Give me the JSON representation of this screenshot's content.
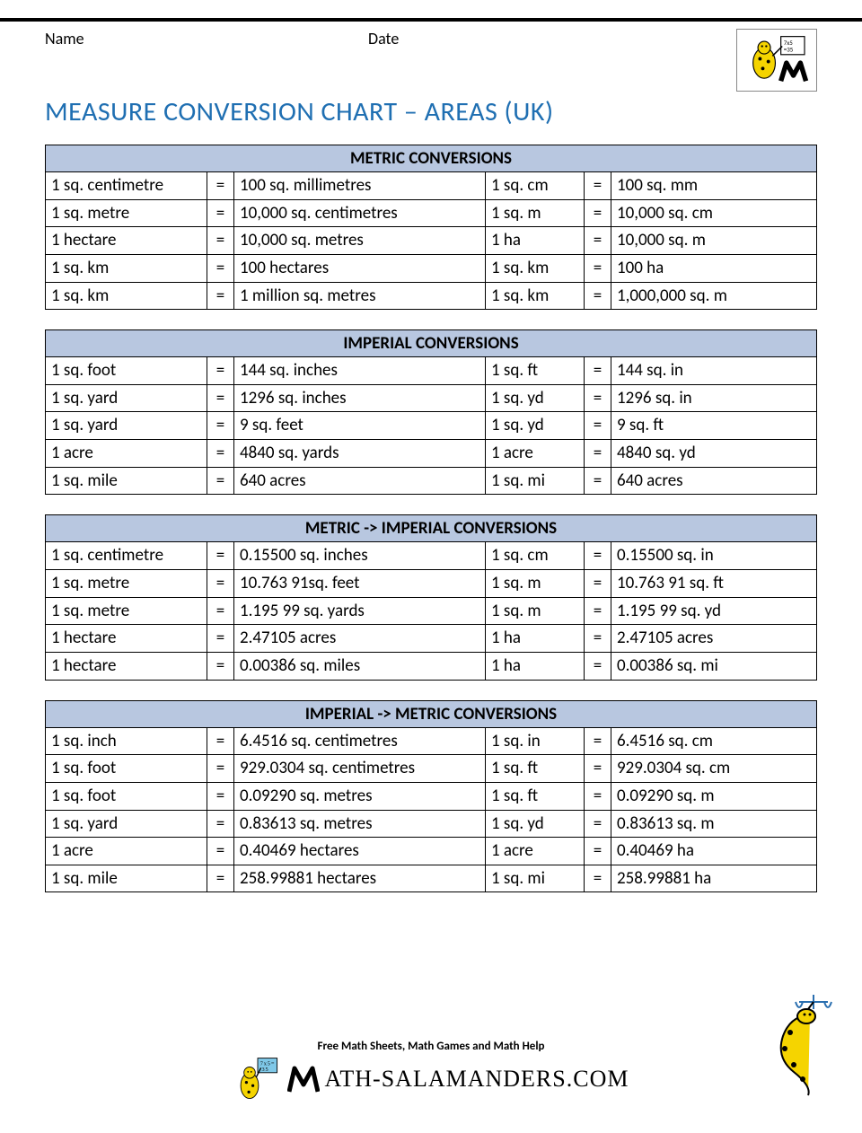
{
  "labels": {
    "name": "Name",
    "date": "Date"
  },
  "title": "MEASURE CONVERSION CHART – AREAS (UK)",
  "colors": {
    "title": "#1f6fb2",
    "table_header_bg": "#b8c7e0",
    "border": "#000000",
    "rule": "#000000"
  },
  "tables": [
    {
      "title": "METRIC CONVERSIONS",
      "rows": [
        [
          "1 sq. centimetre",
          "=",
          "100 sq. millimetres",
          "1 sq. cm",
          "=",
          "100 sq. mm"
        ],
        [
          "1 sq. metre",
          "=",
          "10,000 sq. centimetres",
          "1 sq. m",
          "=",
          "10,000 sq. cm"
        ],
        [
          "1 hectare",
          "=",
          "10,000 sq. metres",
          "1 ha",
          "=",
          "10,000 sq. m"
        ],
        [
          "1 sq. km",
          "=",
          "100 hectares",
          "1 sq. km",
          "=",
          "100 ha"
        ],
        [
          "1 sq. km",
          "=",
          "1 million sq. metres",
          "1 sq. km",
          "=",
          "1,000,000 sq. m"
        ]
      ]
    },
    {
      "title": "IMPERIAL CONVERSIONS",
      "rows": [
        [
          "1 sq. foot",
          "=",
          "144 sq. inches",
          "1 sq. ft",
          "=",
          "144 sq. in"
        ],
        [
          "1 sq. yard",
          "=",
          "1296 sq. inches",
          "1 sq. yd",
          "=",
          "1296 sq. in"
        ],
        [
          "1 sq. yard",
          "=",
          "9 sq. feet",
          "1 sq. yd",
          "=",
          "9 sq. ft"
        ],
        [
          "1 acre",
          "=",
          "4840 sq. yards",
          "1 acre",
          "=",
          "4840 sq. yd"
        ],
        [
          "1 sq. mile",
          "=",
          "640 acres",
          "1 sq. mi",
          "=",
          "640 acres"
        ]
      ]
    },
    {
      "title": "METRIC -> IMPERIAL CONVERSIONS",
      "rows": [
        [
          "1 sq. centimetre",
          "=",
          "0.15500 sq. inches",
          "1 sq. cm",
          "=",
          "0.15500 sq. in"
        ],
        [
          "1 sq. metre",
          "=",
          "10.763 91sq. feet",
          "1 sq. m",
          "=",
          "10.763 91 sq. ft"
        ],
        [
          "1 sq. metre",
          "=",
          "1.195 99 sq. yards",
          "1 sq. m",
          "=",
          "1.195 99 sq. yd"
        ],
        [
          "1 hectare",
          "=",
          "2.47105 acres",
          "1 ha",
          "=",
          "2.47105 acres"
        ],
        [
          "1 hectare",
          "=",
          "0.00386 sq. miles",
          "1 ha",
          "=",
          "0.00386 sq. mi"
        ]
      ]
    },
    {
      "title": "IMPERIAL -> METRIC CONVERSIONS",
      "rows": [
        [
          "1 sq. inch",
          "=",
          "6.4516 sq. centimetres",
          "1 sq. in",
          "=",
          "6.4516 sq. cm"
        ],
        [
          "1 sq. foot",
          "=",
          "929.0304 sq. centimetres",
          "1 sq. ft",
          "=",
          "929.0304 sq. cm"
        ],
        [
          "1 sq. foot",
          "=",
          "0.09290 sq. metres",
          "1 sq. ft",
          "=",
          "0.09290 sq. m"
        ],
        [
          "1 sq. yard",
          "=",
          "0.83613 sq. metres",
          "1 sq. yd",
          "=",
          "0.83613 sq. m"
        ],
        [
          "1 acre",
          "=",
          "0.40469 hectares",
          "1 acre",
          "=",
          "0.40469 ha"
        ],
        [
          "1 sq. mile",
          "=",
          "258.99881 hectares",
          "1 sq. mi",
          "=",
          "258.99881 ha"
        ]
      ]
    }
  ],
  "footer": {
    "tagline": "Free Math Sheets, Math Games and Math Help",
    "brand": "ATH-SALAMANDERS.COM"
  }
}
